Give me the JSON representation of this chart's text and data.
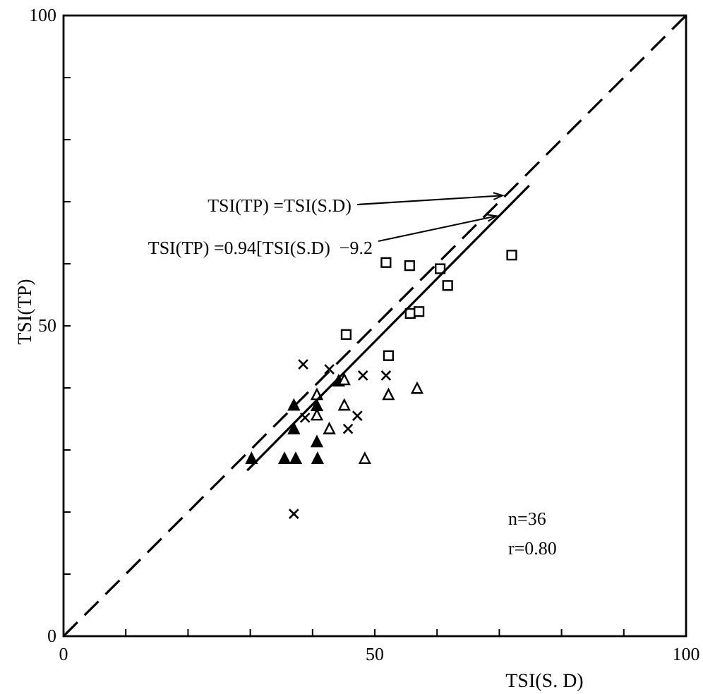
{
  "chart_data": {
    "type": "scatter",
    "xlabel": "TSI(S. D)",
    "ylabel": "TSI(TP)",
    "xlim": [
      0,
      100
    ],
    "ylim": [
      0,
      100
    ],
    "xticks": [
      0,
      {
        "value": 10,
        "label": null
      },
      {
        "value": 20,
        "label": null
      },
      {
        "value": 30,
        "label": null
      },
      {
        "value": 40,
        "label": null
      },
      50,
      {
        "value": 60,
        "label": null
      },
      {
        "value": 70,
        "label": null
      },
      {
        "value": 80,
        "label": null
      },
      {
        "value": 90,
        "label": null
      },
      100
    ],
    "yticks": [
      0,
      {
        "value": 10,
        "label": null
      },
      {
        "value": 20,
        "label": null
      },
      {
        "value": 30,
        "label": null
      },
      {
        "value": 40,
        "label": null
      },
      50,
      {
        "value": 60,
        "label": null
      },
      {
        "value": 70,
        "label": null
      },
      {
        "value": 80,
        "label": null
      },
      {
        "value": 90,
        "label": null
      },
      100
    ],
    "grid": false,
    "series": [
      {
        "marker": "square",
        "color": "#000000",
        "x": [
          51.8,
          55.6,
          60.5,
          61.7,
          55.7,
          57.1,
          45.4,
          52.2,
          72.0
        ],
        "values": [
          60.2,
          59.7,
          59.2,
          56.5,
          52.0,
          52.3,
          48.6,
          45.2,
          61.4
        ]
      },
      {
        "marker": "cross",
        "color": "#000000",
        "x": [
          38.5,
          42.7,
          48.1,
          51.8,
          38.8,
          47.2,
          45.7,
          37.0
        ],
        "values": [
          43.8,
          43.0,
          42.0,
          42.0,
          35.2,
          35.5,
          33.4,
          19.7
        ]
      },
      {
        "marker": "triangle",
        "color": "#000000",
        "x": [
          44.2,
          37.0,
          40.7,
          37.0,
          40.7,
          30.2,
          35.5,
          37.3,
          40.8
        ],
        "values": [
          41.1,
          37.2,
          37.1,
          33.4,
          31.3,
          28.6,
          28.6,
          28.6,
          28.6
        ]
      },
      {
        "marker": "triangle-open",
        "color": "#000000",
        "x": [
          45.1,
          40.7,
          45.1,
          40.7,
          42.7,
          52.2,
          56.8,
          48.4
        ],
        "values": [
          41.3,
          38.9,
          37.2,
          35.6,
          33.4,
          38.9,
          39.9,
          28.6
        ]
      },
      {
        "type": "line",
        "marker": "none",
        "line_style": "dashed",
        "color": "#000000",
        "x": [
          0,
          100
        ],
        "values": [
          0,
          100
        ]
      },
      {
        "type": "line",
        "marker": "none",
        "line_style": "solid",
        "color": "#000000",
        "x": [
          29.5,
          74.8
        ],
        "values": [
          26.7,
          72.6
        ]
      }
    ],
    "annotations": [
      {
        "text": "TSI(TP) =TSI(S.D)",
        "x": 71,
        "y": 71
      },
      {
        "text": "TSI(TP) =0.94[TSI(S.D)  −9.2",
        "x": 70,
        "y": 67.7
      },
      "n=36",
      "r=0.80"
    ]
  }
}
